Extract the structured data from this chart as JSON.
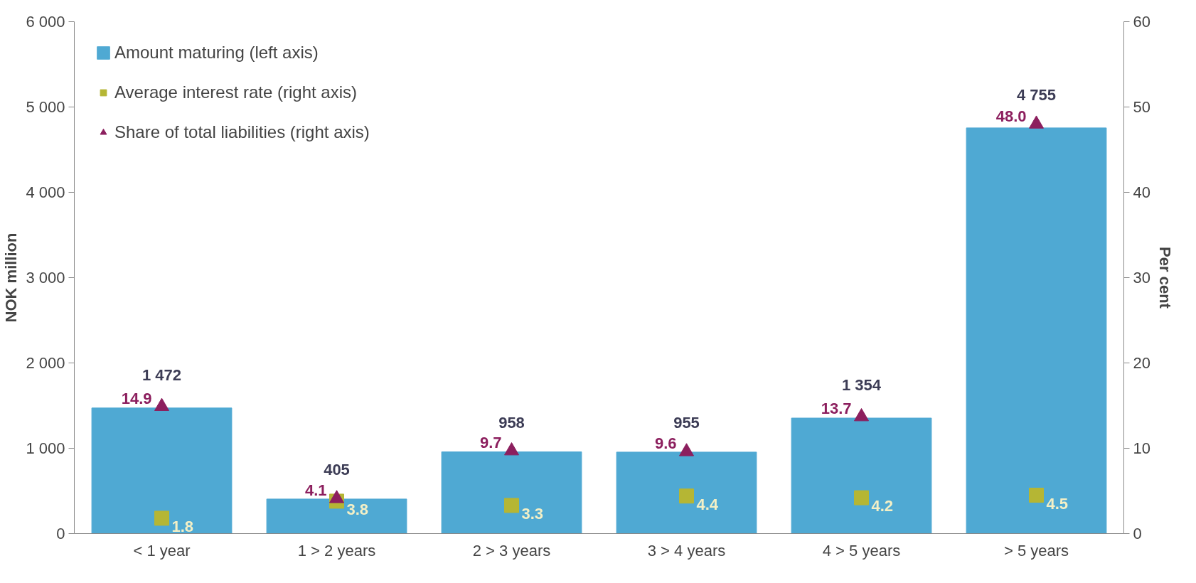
{
  "chart_data": {
    "type": "bar",
    "categories": [
      "< 1 year",
      "1 > 2 years",
      "2 > 3 years",
      "3 > 4 years",
      "4 > 5 years",
      "> 5 years"
    ],
    "ylabel": "NOK million",
    "y2label": "Per cent",
    "ylim": [
      0,
      6000
    ],
    "yticks": [
      0,
      {
        "value": 1000,
        "label": "1 000"
      },
      {
        "value": 2000,
        "label": "2 000"
      },
      {
        "value": 3000,
        "label": "3 000"
      },
      {
        "value": 4000,
        "label": "4 000"
      },
      {
        "value": 5000,
        "label": "5 000"
      },
      {
        "value": 6000,
        "label": "6 000"
      }
    ],
    "y2lim": [
      0,
      60
    ],
    "y2ticks": [
      0,
      10,
      20,
      30,
      40,
      50,
      60
    ],
    "grid": false,
    "legend": "top left",
    "series": [
      {
        "name": "Amount maturing (left axis)",
        "color": "#4fa9d3",
        "values": [
          1472,
          405,
          958,
          955,
          1354,
          4755
        ],
        "value_labels": [
          "1 472",
          "405",
          "958",
          "955",
          "1 354",
          "4 755"
        ]
      },
      {
        "name": "Average interest rate (right axis)",
        "type": "scatter",
        "axis": "y2",
        "marker": "square",
        "color": "#b5b634",
        "values": [
          1.8,
          3.8,
          3.3,
          4.4,
          4.2,
          4.5
        ],
        "value_labels": [
          "1.8",
          "3.8",
          "3.3",
          "4.4",
          "4.2",
          "4.5"
        ]
      },
      {
        "name": "Share of total liabilities (right axis)",
        "type": "scatter",
        "axis": "y2",
        "marker": "triangle",
        "color": "#8c1f5e",
        "values": [
          14.9,
          4.1,
          9.7,
          9.6,
          13.7,
          48.0
        ],
        "value_labels": [
          "14.9",
          "4.1",
          "9.7",
          "9.6",
          "13.7",
          "48.0"
        ]
      }
    ]
  }
}
